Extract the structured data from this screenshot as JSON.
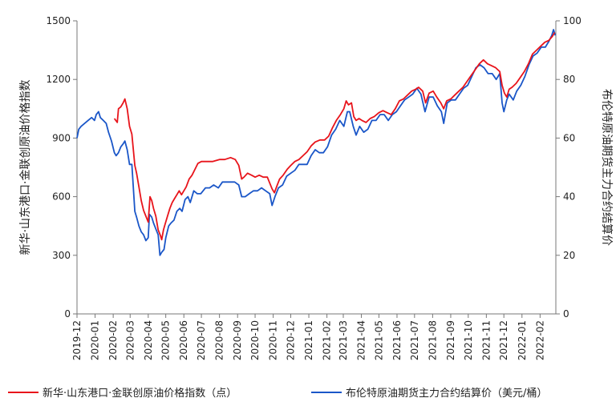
{
  "chart_data": {
    "type": "line",
    "title": "",
    "left_axis": {
      "label": "新华·山东港口·金联创原油价格指数",
      "ylim": [
        0,
        1500
      ],
      "ticks": [
        "0",
        "300",
        "600",
        "900",
        "1200",
        "1500"
      ]
    },
    "right_axis": {
      "label": "布伦特原油期货主力合约结算价",
      "ylim": [
        0,
        100
      ],
      "ticks": [
        "0",
        "20",
        "40",
        "60",
        "80",
        "100"
      ]
    },
    "x_labels": [
      "2019-12",
      "2020-01",
      "2020-02",
      "2020-03",
      "2020-04",
      "2020-05",
      "2020-06",
      "2020-07",
      "2020-08",
      "2020-09",
      "2020-10",
      "2020-11",
      "2020-12",
      "2021-01",
      "2021-02",
      "2021-03",
      "2021-04",
      "2021-05",
      "2021-06",
      "2021-07",
      "2021-08",
      "2021-09",
      "2021-10",
      "2021-11",
      "2021-12",
      "2022-01",
      "2022-02"
    ],
    "grid": false,
    "legend_position": "bottom",
    "series": [
      {
        "name": "新华·山东港口·金联创原油价格指数（点）",
        "axis": "left",
        "color": "#e8141b",
        "points": [
          [
            "2020-02-03",
            1000
          ],
          [
            "2020-02-08",
            980
          ],
          [
            "2020-02-10",
            1050
          ],
          [
            "2020-02-14",
            1060
          ],
          [
            "2020-02-18",
            1080
          ],
          [
            "2020-02-21",
            1100
          ],
          [
            "2020-02-25",
            1050
          ],
          [
            "2020-02-29",
            960
          ],
          [
            "2020-03-04",
            920
          ],
          [
            "2020-03-09",
            760
          ],
          [
            "2020-03-12",
            720
          ],
          [
            "2020-03-16",
            650
          ],
          [
            "2020-03-20",
            580
          ],
          [
            "2020-03-24",
            530
          ],
          [
            "2020-03-28",
            500
          ],
          [
            "2020-04-01",
            470
          ],
          [
            "2020-04-04",
            600
          ],
          [
            "2020-04-07",
            580
          ],
          [
            "2020-04-10",
            540
          ],
          [
            "2020-04-14",
            500
          ],
          [
            "2020-04-18",
            430
          ],
          [
            "2020-04-22",
            400
          ],
          [
            "2020-04-24",
            380
          ],
          [
            "2020-04-27",
            430
          ],
          [
            "2020-04-30",
            460
          ],
          [
            "2020-05-04",
            500
          ],
          [
            "2020-05-08",
            540
          ],
          [
            "2020-05-12",
            570
          ],
          [
            "2020-05-16",
            590
          ],
          [
            "2020-05-20",
            610
          ],
          [
            "2020-05-24",
            630
          ],
          [
            "2020-05-28",
            610
          ],
          [
            "2020-06-01",
            630
          ],
          [
            "2020-06-05",
            650
          ],
          [
            "2020-06-10",
            690
          ],
          [
            "2020-06-15",
            710
          ],
          [
            "2020-06-20",
            740
          ],
          [
            "2020-06-25",
            770
          ],
          [
            "2020-07-01",
            780
          ],
          [
            "2020-07-10",
            780
          ],
          [
            "2020-07-20",
            780
          ],
          [
            "2020-08-01",
            790
          ],
          [
            "2020-08-10",
            790
          ],
          [
            "2020-08-20",
            800
          ],
          [
            "2020-08-28",
            790
          ],
          [
            "2020-09-03",
            760
          ],
          [
            "2020-09-08",
            690
          ],
          [
            "2020-09-12",
            700
          ],
          [
            "2020-09-18",
            720
          ],
          [
            "2020-09-25",
            710
          ],
          [
            "2020-10-01",
            700
          ],
          [
            "2020-10-08",
            710
          ],
          [
            "2020-10-15",
            700
          ],
          [
            "2020-10-22",
            700
          ],
          [
            "2020-10-30",
            640
          ],
          [
            "2020-11-03",
            620
          ],
          [
            "2020-11-08",
            660
          ],
          [
            "2020-11-12",
            690
          ],
          [
            "2020-11-18",
            710
          ],
          [
            "2020-11-25",
            740
          ],
          [
            "2020-12-01",
            760
          ],
          [
            "2020-12-08",
            780
          ],
          [
            "2020-12-15",
            790
          ],
          [
            "2020-12-22",
            810
          ],
          [
            "2020-12-29",
            830
          ],
          [
            "2021-01-05",
            860
          ],
          [
            "2021-01-12",
            880
          ],
          [
            "2021-01-20",
            890
          ],
          [
            "2021-01-28",
            890
          ],
          [
            "2021-02-04",
            910
          ],
          [
            "2021-02-10",
            950
          ],
          [
            "2021-02-17",
            990
          ],
          [
            "2021-02-24",
            1020
          ],
          [
            "2021-03-02",
            1050
          ],
          [
            "2021-03-06",
            1090
          ],
          [
            "2021-03-10",
            1070
          ],
          [
            "2021-03-15",
            1080
          ],
          [
            "2021-03-19",
            1010
          ],
          [
            "2021-03-23",
            990
          ],
          [
            "2021-03-28",
            1000
          ],
          [
            "2021-04-02",
            990
          ],
          [
            "2021-04-09",
            980
          ],
          [
            "2021-04-16",
            1000
          ],
          [
            "2021-04-23",
            1010
          ],
          [
            "2021-05-01",
            1030
          ],
          [
            "2021-05-08",
            1040
          ],
          [
            "2021-05-15",
            1030
          ],
          [
            "2021-05-22",
            1020
          ],
          [
            "2021-05-29",
            1050
          ],
          [
            "2021-06-05",
            1090
          ],
          [
            "2021-06-12",
            1100
          ],
          [
            "2021-06-19",
            1120
          ],
          [
            "2021-06-26",
            1140
          ],
          [
            "2021-07-03",
            1150
          ],
          [
            "2021-07-08",
            1160
          ],
          [
            "2021-07-15",
            1140
          ],
          [
            "2021-07-20",
            1080
          ],
          [
            "2021-07-26",
            1130
          ],
          [
            "2021-08-02",
            1140
          ],
          [
            "2021-08-08",
            1110
          ],
          [
            "2021-08-15",
            1080
          ],
          [
            "2021-08-20",
            1050
          ],
          [
            "2021-08-25",
            1090
          ],
          [
            "2021-09-01",
            1100
          ],
          [
            "2021-09-08",
            1120
          ],
          [
            "2021-09-15",
            1140
          ],
          [
            "2021-09-22",
            1160
          ],
          [
            "2021-09-29",
            1190
          ],
          [
            "2021-10-06",
            1220
          ],
          [
            "2021-10-13",
            1250
          ],
          [
            "2021-10-20",
            1280
          ],
          [
            "2021-10-27",
            1300
          ],
          [
            "2021-11-03",
            1280
          ],
          [
            "2021-11-10",
            1270
          ],
          [
            "2021-11-17",
            1260
          ],
          [
            "2021-11-24",
            1240
          ],
          [
            "2021-11-28",
            1170
          ],
          [
            "2021-12-02",
            1130
          ],
          [
            "2021-12-06",
            1110
          ],
          [
            "2021-12-10",
            1150
          ],
          [
            "2021-12-15",
            1160
          ],
          [
            "2021-12-22",
            1180
          ],
          [
            "2021-12-29",
            1210
          ],
          [
            "2022-01-05",
            1240
          ],
          [
            "2022-01-12",
            1280
          ],
          [
            "2022-01-19",
            1330
          ],
          [
            "2022-01-26",
            1350
          ],
          [
            "2022-02-02",
            1370
          ],
          [
            "2022-02-09",
            1390
          ],
          [
            "2022-02-16",
            1400
          ],
          [
            "2022-02-22",
            1420
          ],
          [
            "2022-02-26",
            1440
          ]
        ]
      },
      {
        "name": "布伦特原油期货主力合约结算价（美元/桶）",
        "axis": "right",
        "color": "#1a56c8",
        "points": [
          [
            "2019-12-01",
            60
          ],
          [
            "2019-12-04",
            63
          ],
          [
            "2019-12-08",
            64
          ],
          [
            "2019-12-14",
            65
          ],
          [
            "2019-12-20",
            66
          ],
          [
            "2019-12-26",
            67
          ],
          [
            "2019-12-31",
            66
          ],
          [
            "2020-01-03",
            68
          ],
          [
            "2020-01-07",
            69
          ],
          [
            "2020-01-10",
            67
          ],
          [
            "2020-01-15",
            66
          ],
          [
            "2020-01-20",
            65
          ],
          [
            "2020-01-24",
            62
          ],
          [
            "2020-01-29",
            59
          ],
          [
            "2020-02-03",
            55
          ],
          [
            "2020-02-06",
            54
          ],
          [
            "2020-02-10",
            55
          ],
          [
            "2020-02-14",
            57
          ],
          [
            "2020-02-18",
            58
          ],
          [
            "2020-02-21",
            59
          ],
          [
            "2020-02-25",
            56
          ],
          [
            "2020-02-29",
            51
          ],
          [
            "2020-03-04",
            51
          ],
          [
            "2020-03-09",
            35
          ],
          [
            "2020-03-12",
            33
          ],
          [
            "2020-03-16",
            30
          ],
          [
            "2020-03-20",
            28
          ],
          [
            "2020-03-24",
            27
          ],
          [
            "2020-03-28",
            25
          ],
          [
            "2020-04-01",
            26
          ],
          [
            "2020-04-03",
            34
          ],
          [
            "2020-04-07",
            33
          ],
          [
            "2020-04-10",
            31
          ],
          [
            "2020-04-14",
            29
          ],
          [
            "2020-04-18",
            27
          ],
          [
            "2020-04-21",
            20
          ],
          [
            "2020-04-24",
            21
          ],
          [
            "2020-04-28",
            22
          ],
          [
            "2020-05-01",
            26
          ],
          [
            "2020-05-06",
            30
          ],
          [
            "2020-05-10",
            31
          ],
          [
            "2020-05-15",
            32
          ],
          [
            "2020-05-20",
            35
          ],
          [
            "2020-05-25",
            36
          ],
          [
            "2020-05-29",
            35
          ],
          [
            "2020-06-03",
            39
          ],
          [
            "2020-06-08",
            40
          ],
          [
            "2020-06-12",
            38
          ],
          [
            "2020-06-18",
            42
          ],
          [
            "2020-06-24",
            41
          ],
          [
            "2020-06-30",
            41
          ],
          [
            "2020-07-08",
            43
          ],
          [
            "2020-07-15",
            43
          ],
          [
            "2020-07-22",
            44
          ],
          [
            "2020-07-30",
            43
          ],
          [
            "2020-08-06",
            45
          ],
          [
            "2020-08-13",
            45
          ],
          [
            "2020-08-20",
            45
          ],
          [
            "2020-08-27",
            45
          ],
          [
            "2020-09-03",
            44
          ],
          [
            "2020-09-08",
            40
          ],
          [
            "2020-09-14",
            40
          ],
          [
            "2020-09-21",
            41
          ],
          [
            "2020-09-28",
            42
          ],
          [
            "2020-10-05",
            42
          ],
          [
            "2020-10-12",
            43
          ],
          [
            "2020-10-19",
            42
          ],
          [
            "2020-10-26",
            41
          ],
          [
            "2020-10-30",
            37
          ],
          [
            "2020-11-04",
            40
          ],
          [
            "2020-11-10",
            43
          ],
          [
            "2020-11-17",
            44
          ],
          [
            "2020-11-24",
            47
          ],
          [
            "2020-12-01",
            48
          ],
          [
            "2020-12-08",
            49
          ],
          [
            "2020-12-15",
            51
          ],
          [
            "2020-12-22",
            51
          ],
          [
            "2020-12-29",
            51
          ],
          [
            "2021-01-05",
            54
          ],
          [
            "2021-01-12",
            56
          ],
          [
            "2021-01-19",
            55
          ],
          [
            "2021-01-26",
            55
          ],
          [
            "2021-02-02",
            57
          ],
          [
            "2021-02-09",
            61
          ],
          [
            "2021-02-16",
            63
          ],
          [
            "2021-02-23",
            66
          ],
          [
            "2021-03-02",
            64
          ],
          [
            "2021-03-08",
            69
          ],
          [
            "2021-03-12",
            69
          ],
          [
            "2021-03-18",
            64
          ],
          [
            "2021-03-23",
            61
          ],
          [
            "2021-03-29",
            64
          ],
          [
            "2021-04-05",
            62
          ],
          [
            "2021-04-12",
            63
          ],
          [
            "2021-04-19",
            66
          ],
          [
            "2021-04-26",
            66
          ],
          [
            "2021-05-03",
            68
          ],
          [
            "2021-05-10",
            68
          ],
          [
            "2021-05-17",
            66
          ],
          [
            "2021-05-24",
            68
          ],
          [
            "2021-05-31",
            69
          ],
          [
            "2021-06-07",
            71
          ],
          [
            "2021-06-14",
            73
          ],
          [
            "2021-06-21",
            74
          ],
          [
            "2021-06-28",
            75
          ],
          [
            "2021-07-05",
            77
          ],
          [
            "2021-07-12",
            75
          ],
          [
            "2021-07-19",
            69
          ],
          [
            "2021-07-26",
            74
          ],
          [
            "2021-08-02",
            74
          ],
          [
            "2021-08-09",
            71
          ],
          [
            "2021-08-16",
            69
          ],
          [
            "2021-08-20",
            65
          ],
          [
            "2021-08-26",
            72
          ],
          [
            "2021-09-02",
            73
          ],
          [
            "2021-09-09",
            73
          ],
          [
            "2021-09-16",
            75
          ],
          [
            "2021-09-23",
            77
          ],
          [
            "2021-09-30",
            78
          ],
          [
            "2021-10-07",
            81
          ],
          [
            "2021-10-14",
            84
          ],
          [
            "2021-10-21",
            85
          ],
          [
            "2021-10-28",
            84
          ],
          [
            "2021-11-04",
            82
          ],
          [
            "2021-11-11",
            82
          ],
          [
            "2021-11-18",
            80
          ],
          [
            "2021-11-24",
            82
          ],
          [
            "2021-11-28",
            72
          ],
          [
            "2021-12-01",
            69
          ],
          [
            "2021-12-06",
            73
          ],
          [
            "2021-12-10",
            75
          ],
          [
            "2021-12-17",
            73
          ],
          [
            "2021-12-23",
            76
          ],
          [
            "2021-12-30",
            78
          ],
          [
            "2022-01-06",
            81
          ],
          [
            "2022-01-13",
            85
          ],
          [
            "2022-01-20",
            88
          ],
          [
            "2022-01-27",
            89
          ],
          [
            "2022-02-03",
            91
          ],
          [
            "2022-02-10",
            91
          ],
          [
            "2022-02-16",
            93
          ],
          [
            "2022-02-21",
            95
          ],
          [
            "2022-02-24",
            97
          ],
          [
            "2022-02-27",
            95
          ]
        ]
      }
    ]
  },
  "legend": [
    {
      "label": "新华·山东港口·金联创原油价格指数（点）",
      "color": "#e8141b"
    },
    {
      "label": "布伦特原油期货主力合约结算价（美元/桶）",
      "color": "#1a56c8"
    }
  ]
}
